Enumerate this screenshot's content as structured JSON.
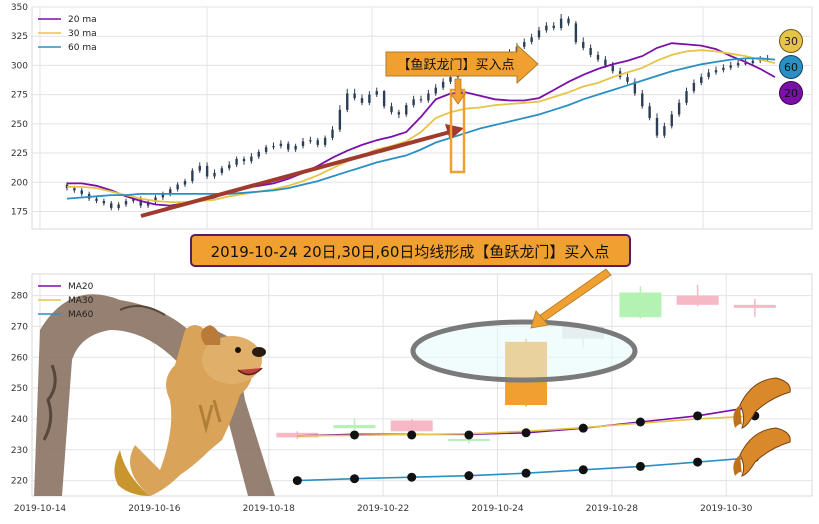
{
  "colors": {
    "ma20": "#7b0fa8",
    "ma30": "#e8c34a",
    "ma60": "#2a8fc4",
    "candle_up": "#2c3e55",
    "bull_box": "#b4f2b4",
    "bear_box": "#f7b8c6",
    "orange": "#f0a030",
    "arrow_red": "#a03a2c"
  },
  "chart_data": [
    {
      "type": "line",
      "ylim": [
        160,
        350
      ],
      "yticks": [
        "175",
        "200",
        "225",
        "250",
        "275",
        "300",
        "325",
        "350"
      ],
      "grid": true,
      "legend_position": "top-left",
      "series": [
        {
          "name": "20 ma",
          "x": [
            0,
            4,
            8,
            12,
            16,
            20,
            24,
            28,
            32,
            36,
            40,
            44,
            48,
            52,
            56,
            60,
            64,
            68,
            72,
            76,
            80,
            84,
            88,
            92,
            96,
            100,
            104,
            108,
            112,
            116,
            120,
            124,
            128,
            132,
            136,
            140,
            144,
            148,
            152,
            156,
            160,
            164,
            168,
            172,
            176,
            180,
            184,
            188,
            192
          ],
          "y": [
            199,
            199,
            197,
            193,
            188,
            184,
            181,
            180,
            182,
            184,
            187,
            192,
            195,
            197,
            199,
            203,
            208,
            214,
            221,
            227,
            232,
            236,
            239,
            243,
            256,
            271,
            276,
            277,
            274,
            271,
            270,
            270,
            272,
            279,
            286,
            292,
            297,
            301,
            304,
            308,
            315,
            319,
            318,
            317,
            314,
            308,
            303,
            297,
            290
          ]
        },
        {
          "name": "30 ma",
          "x": [
            0,
            4,
            8,
            12,
            16,
            20,
            24,
            28,
            32,
            36,
            40,
            44,
            48,
            52,
            56,
            60,
            64,
            68,
            72,
            76,
            80,
            84,
            88,
            92,
            96,
            100,
            104,
            108,
            112,
            116,
            120,
            124,
            128,
            132,
            136,
            140,
            144,
            148,
            152,
            156,
            160,
            164,
            168,
            172,
            176,
            180,
            184,
            188,
            192
          ],
          "y": [
            196,
            196,
            195,
            192,
            189,
            186,
            184,
            183,
            183,
            184,
            185,
            188,
            190,
            192,
            194,
            197,
            201,
            206,
            212,
            218,
            223,
            228,
            231,
            235,
            243,
            255,
            260,
            263,
            264,
            266,
            267,
            268,
            269,
            273,
            277,
            282,
            285,
            290,
            294,
            298,
            304,
            309,
            312,
            313,
            312,
            310,
            308,
            305,
            302
          ]
        },
        {
          "name": "60 ma",
          "x": [
            0,
            4,
            8,
            12,
            16,
            20,
            24,
            28,
            32,
            36,
            40,
            44,
            48,
            52,
            56,
            60,
            64,
            68,
            72,
            76,
            80,
            84,
            88,
            92,
            96,
            100,
            104,
            108,
            112,
            116,
            120,
            124,
            128,
            132,
            136,
            140,
            144,
            148,
            152,
            156,
            160,
            164,
            168,
            172,
            176,
            180,
            184,
            188,
            192
          ],
          "y": [
            186,
            187,
            188,
            189,
            189,
            190,
            190,
            190,
            190,
            190,
            190,
            190,
            191,
            192,
            193,
            195,
            198,
            201,
            205,
            209,
            213,
            217,
            220,
            223,
            228,
            234,
            238,
            242,
            246,
            249,
            252,
            255,
            258,
            262,
            266,
            271,
            275,
            279,
            283,
            287,
            291,
            295,
            298,
            301,
            303,
            305,
            306,
            306,
            305
          ]
        }
      ],
      "candles": {
        "x": [
          0,
          2,
          4,
          6,
          8,
          10,
          12,
          14,
          16,
          18,
          20,
          22,
          24,
          26,
          28,
          30,
          32,
          34,
          36,
          38,
          40,
          42,
          44,
          46,
          48,
          50,
          52,
          54,
          56,
          58,
          60,
          62,
          64,
          66,
          68,
          70,
          72,
          74,
          76,
          78,
          80,
          82,
          84,
          86,
          88,
          90,
          92,
          94,
          96,
          98,
          100,
          102,
          104,
          106,
          108,
          110,
          112,
          114,
          116,
          118,
          120,
          122,
          124,
          126,
          128,
          130,
          132,
          134,
          136,
          138,
          140,
          142,
          144,
          146,
          148,
          150,
          152,
          154,
          156,
          158,
          160,
          162,
          164,
          166,
          168,
          170,
          172,
          174,
          176,
          178,
          180,
          182,
          184,
          186,
          188,
          190
        ],
        "open": [
          198,
          195,
          193,
          190,
          186,
          184,
          182,
          178,
          181,
          184,
          186,
          180,
          183,
          187,
          190,
          194,
          198,
          201,
          210,
          214,
          205,
          208,
          212,
          215,
          220,
          218,
          222,
          226,
          230,
          231,
          233,
          228,
          231,
          235,
          236,
          232,
          238,
          245,
          262,
          276,
          272,
          268,
          275,
          278,
          265,
          260,
          258,
          266,
          271,
          270,
          276,
          281,
          286,
          290,
          294,
          296,
          298,
          293,
          300,
          305,
          307,
          311,
          316,
          320,
          324,
          330,
          334,
          332,
          340,
          336,
          320,
          315,
          309,
          305,
          300,
          295,
          290,
          286,
          276,
          265,
          255,
          240,
          248,
          258,
          268,
          278,
          285,
          290,
          294,
          296,
          298,
          300,
          302,
          302,
          304,
          305
        ],
        "close": [
          195,
          193,
          190,
          186,
          184,
          182,
          178,
          181,
          184,
          186,
          180,
          183,
          187,
          190,
          194,
          198,
          201,
          210,
          214,
          205,
          208,
          212,
          215,
          220,
          218,
          222,
          226,
          230,
          231,
          233,
          228,
          231,
          235,
          236,
          232,
          238,
          245,
          262,
          276,
          272,
          268,
          275,
          278,
          265,
          260,
          258,
          266,
          271,
          270,
          276,
          281,
          286,
          290,
          294,
          296,
          298,
          293,
          300,
          305,
          307,
          311,
          316,
          320,
          324,
          330,
          334,
          332,
          340,
          336,
          320,
          315,
          309,
          305,
          300,
          295,
          290,
          286,
          276,
          265,
          255,
          240,
          248,
          258,
          268,
          278,
          285,
          290,
          294,
          296,
          298,
          300,
          302,
          302,
          304,
          305,
          306
        ],
        "high": [
          200,
          197,
          195,
          192,
          188,
          186,
          184,
          183,
          186,
          188,
          188,
          185,
          189,
          192,
          196,
          200,
          203,
          212,
          217,
          217,
          211,
          214,
          218,
          222,
          222,
          225,
          228,
          232,
          234,
          236,
          235,
          233,
          238,
          239,
          238,
          240,
          248,
          266,
          280,
          280,
          275,
          278,
          281,
          279,
          268,
          262,
          268,
          274,
          274,
          279,
          284,
          289,
          293,
          297,
          299,
          300,
          300,
          302,
          308,
          310,
          314,
          319,
          323,
          327,
          333,
          337,
          337,
          344,
          342,
          338,
          324,
          318,
          312,
          308,
          303,
          298,
          293,
          289,
          279,
          268,
          259,
          251,
          261,
          271,
          281,
          288,
          293,
          297,
          299,
          301,
          303,
          305,
          306,
          307,
          308,
          309
        ],
        "low": [
          193,
          191,
          188,
          184,
          182,
          180,
          176,
          176,
          179,
          182,
          178,
          178,
          181,
          185,
          188,
          192,
          196,
          199,
          208,
          203,
          203,
          206,
          210,
          213,
          215,
          216,
          220,
          224,
          228,
          229,
          226,
          226,
          229,
          233,
          230,
          230,
          236,
          243,
          260,
          270,
          266,
          266,
          273,
          263,
          258,
          255,
          256,
          264,
          268,
          268,
          274,
          279,
          284,
          288,
          292,
          294,
          291,
          291,
          298,
          303,
          305,
          309,
          314,
          318,
          322,
          328,
          330,
          330,
          334,
          318,
          313,
          307,
          303,
          298,
          293,
          288,
          284,
          274,
          263,
          253,
          238,
          238,
          246,
          256,
          266,
          276,
          283,
          288,
          292,
          294,
          296,
          298,
          300,
          300,
          302,
          303
        ]
      }
    },
    {
      "type": "bar",
      "categories": [
        "2019-10-14",
        "2019-10-16",
        "2019-10-18",
        "2019-10-22",
        "2019-10-24",
        "2019-10-28",
        "2019-10-30"
      ],
      "ylim": [
        215,
        287
      ],
      "yticks": [
        "220",
        "230",
        "240",
        "250",
        "260",
        "270",
        "280"
      ],
      "grid": true,
      "legend_position": "top-left",
      "boxes": [
        {
          "day": 4.5,
          "open": 235.5,
          "close": 234,
          "high": 236,
          "low": 233.5
        },
        {
          "day": 5.5,
          "open": 237,
          "close": 238,
          "high": 240,
          "low": 236.5
        },
        {
          "day": 6.5,
          "open": 239.5,
          "close": 236,
          "high": 240,
          "low": 235.5
        },
        {
          "day": 7.5,
          "open": 233,
          "close": 233.5,
          "high": 235,
          "low": 232
        },
        {
          "day": 8.5,
          "open": 244.5,
          "close": 265,
          "high": 266,
          "low": 244
        },
        {
          "day": 9.5,
          "open": 266,
          "close": 270,
          "high": 270.5,
          "low": 263
        },
        {
          "day": 10.5,
          "open": 273,
          "close": 281,
          "high": 283,
          "low": 272.5
        },
        {
          "day": 11.5,
          "open": 280,
          "close": 277,
          "high": 283.5,
          "low": 276.5
        },
        {
          "day": 12.5,
          "open": 277,
          "close": 276,
          "high": 279,
          "low": 273
        }
      ],
      "series": [
        {
          "name": "MA20",
          "x": [
            4.5,
            5.5,
            6.5,
            7.5,
            8.5,
            9.5,
            10.5,
            11.5,
            12.5
          ],
          "y": [
            234.5,
            235,
            235,
            235,
            235.5,
            237,
            239,
            241,
            244
          ]
        },
        {
          "name": "MA30",
          "x": [
            4.5,
            5.5,
            6.5,
            7.5,
            8.5,
            9.5,
            10.5,
            11.5,
            12.5
          ],
          "y": [
            234.5,
            234.7,
            234.9,
            235.2,
            236,
            237.2,
            238.6,
            240,
            241
          ]
        },
        {
          "name": "MA60",
          "x": [
            4.5,
            5.5,
            6.5,
            7.5,
            8.5,
            9.5,
            10.5,
            11.5,
            12.5
          ],
          "y": [
            220,
            220.6,
            221.1,
            221.6,
            222.4,
            223.5,
            224.6,
            226,
            227.5
          ]
        }
      ],
      "dots_upper": {
        "x": [
          5.5,
          6.5,
          7.5,
          8.5,
          9.5,
          10.5,
          11.5,
          12.5
        ],
        "y": [
          234.8,
          234.8,
          234.8,
          235.5,
          237,
          239,
          241,
          241
        ]
      },
      "dots_lower": {
        "x": [
          4.5,
          5.5,
          6.5,
          7.5,
          8.5,
          9.5,
          10.5,
          11.5,
          12.5
        ],
        "y": [
          220,
          220.6,
          221.1,
          221.6,
          222.4,
          223.5,
          224.6,
          226,
          227.5
        ]
      }
    }
  ],
  "annotations": {
    "signal_label": "【鱼跃龙门】买入点",
    "banner": "2019-10-24 20日,30日,60日均线形成【鱼跃龙门】买入点",
    "badge_30": "30",
    "badge_60": "60",
    "badge_20": "20"
  }
}
